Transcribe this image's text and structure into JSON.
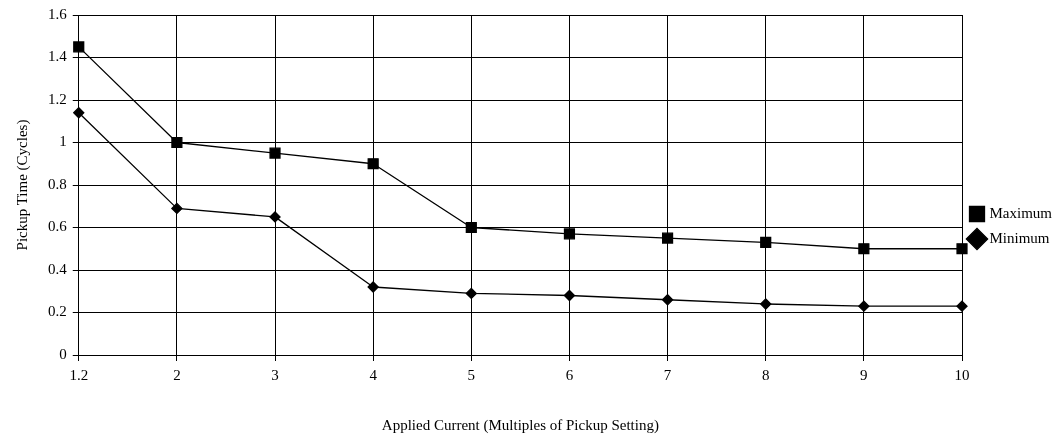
{
  "chart_data": {
    "type": "line",
    "xlabel": "Applied Current (Multiples of Pickup Setting)",
    "ylabel": "Pickup Time (Cycles)",
    "categories": [
      "1.2",
      "2",
      "3",
      "4",
      "5",
      "6",
      "7",
      "8",
      "9",
      "10"
    ],
    "series": [
      {
        "name": "Maximum",
        "color": "#000000",
        "marker": "square",
        "values": [
          1.45,
          1.0,
          0.95,
          0.9,
          0.6,
          0.57,
          0.55,
          0.53,
          0.5,
          0.5
        ]
      },
      {
        "name": "Minimum",
        "color": "#000000",
        "marker": "diamond",
        "values": [
          1.14,
          0.69,
          0.65,
          0.32,
          0.29,
          0.28,
          0.26,
          0.24,
          0.23,
          0.23
        ]
      }
    ],
    "ylim": [
      0,
      1.6
    ],
    "yticks": [
      0,
      0.2,
      0.4,
      0.6,
      0.8,
      1,
      1.2,
      1.4,
      1.6
    ],
    "grid": true,
    "legend": "right",
    "line_style": "solid"
  }
}
